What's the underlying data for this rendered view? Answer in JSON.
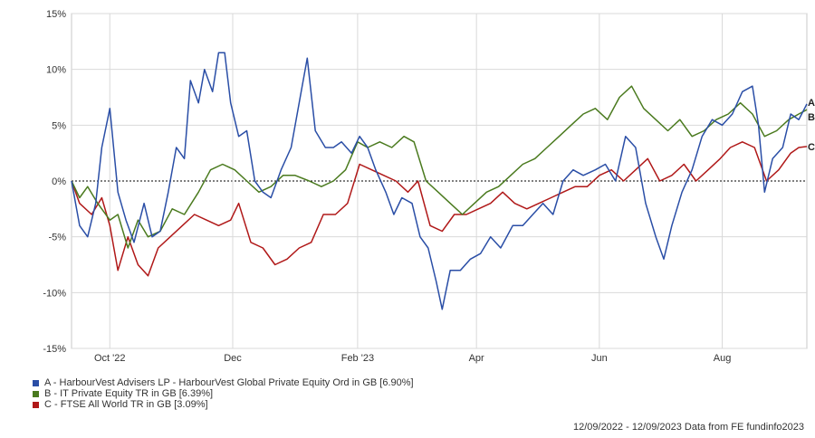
{
  "chart_data": {
    "type": "line",
    "ylim": [
      -15,
      15
    ],
    "yticks": [
      15,
      10,
      5,
      0,
      -5,
      -10,
      -15
    ],
    "ytick_labels": [
      "15%",
      "10%",
      "5%",
      "0%",
      "-5%",
      "-10%",
      "-15%"
    ],
    "xlim": [
      "2022-09-12",
      "2023-09-12"
    ],
    "xticks": [
      "2022-10-01",
      "2022-12-01",
      "2023-02-01",
      "2023-04-01",
      "2023-06-01",
      "2023-08-01"
    ],
    "xtick_labels": [
      "Oct '22",
      "Dec",
      "Feb '23",
      "Apr",
      "Jun",
      "Aug"
    ],
    "grid": true,
    "zero_line": true,
    "series": [
      {
        "name": "A - HarbourVest Advisers LP - HarbourVest Global Private Equity Ord in GB [6.90%]",
        "end_label": "A",
        "color": "#2a4ea6",
        "points": [
          [
            "2022-09-12",
            0
          ],
          [
            "2022-09-16",
            -4
          ],
          [
            "2022-09-20",
            -5
          ],
          [
            "2022-09-24",
            -2
          ],
          [
            "2022-09-27",
            3
          ],
          [
            "2022-10-01",
            6.5
          ],
          [
            "2022-10-05",
            -1
          ],
          [
            "2022-10-09",
            -3.5
          ],
          [
            "2022-10-13",
            -5.5
          ],
          [
            "2022-10-18",
            -2
          ],
          [
            "2022-10-22",
            -5
          ],
          [
            "2022-10-26",
            -4.5
          ],
          [
            "2022-10-30",
            -1
          ],
          [
            "2022-11-03",
            3
          ],
          [
            "2022-11-07",
            2
          ],
          [
            "2022-11-10",
            9
          ],
          [
            "2022-11-14",
            7
          ],
          [
            "2022-11-17",
            10
          ],
          [
            "2022-11-21",
            8
          ],
          [
            "2022-11-24",
            11.5
          ],
          [
            "2022-11-27",
            11.5
          ],
          [
            "2022-11-30",
            7
          ],
          [
            "2022-12-04",
            4
          ],
          [
            "2022-12-08",
            4.5
          ],
          [
            "2022-12-12",
            0
          ],
          [
            "2022-12-16",
            -1
          ],
          [
            "2022-12-20",
            -1.5
          ],
          [
            "2022-12-25",
            1
          ],
          [
            "2022-12-30",
            3
          ],
          [
            "2023-01-04",
            8
          ],
          [
            "2023-01-07",
            11
          ],
          [
            "2023-01-11",
            4.5
          ],
          [
            "2023-01-16",
            3
          ],
          [
            "2023-01-20",
            3
          ],
          [
            "2023-01-24",
            3.5
          ],
          [
            "2023-01-29",
            2.5
          ],
          [
            "2023-02-02",
            4
          ],
          [
            "2023-02-06",
            3
          ],
          [
            "2023-02-10",
            1
          ],
          [
            "2023-02-15",
            -1
          ],
          [
            "2023-02-19",
            -3
          ],
          [
            "2023-02-23",
            -1.5
          ],
          [
            "2023-02-28",
            -2
          ],
          [
            "2023-03-04",
            -5
          ],
          [
            "2023-03-08",
            -6
          ],
          [
            "2023-03-12",
            -9
          ],
          [
            "2023-03-15",
            -11.5
          ],
          [
            "2023-03-19",
            -8
          ],
          [
            "2023-03-24",
            -8
          ],
          [
            "2023-03-29",
            -7
          ],
          [
            "2023-04-03",
            -6.5
          ],
          [
            "2023-04-08",
            -5
          ],
          [
            "2023-04-13",
            -6
          ],
          [
            "2023-04-19",
            -4
          ],
          [
            "2023-04-24",
            -4
          ],
          [
            "2023-04-29",
            -3
          ],
          [
            "2023-05-04",
            -2
          ],
          [
            "2023-05-09",
            -3
          ],
          [
            "2023-05-14",
            0
          ],
          [
            "2023-05-19",
            1
          ],
          [
            "2023-05-24",
            0.5
          ],
          [
            "2023-05-30",
            1
          ],
          [
            "2023-06-04",
            1.5
          ],
          [
            "2023-06-09",
            0
          ],
          [
            "2023-06-14",
            4
          ],
          [
            "2023-06-19",
            3
          ],
          [
            "2023-06-24",
            -2
          ],
          [
            "2023-06-29",
            -5
          ],
          [
            "2023-07-03",
            -7
          ],
          [
            "2023-07-07",
            -4
          ],
          [
            "2023-07-12",
            -1
          ],
          [
            "2023-07-17",
            1
          ],
          [
            "2023-07-22",
            4
          ],
          [
            "2023-07-27",
            5.5
          ],
          [
            "2023-08-01",
            5
          ],
          [
            "2023-08-06",
            6
          ],
          [
            "2023-08-11",
            8
          ],
          [
            "2023-08-16",
            8.5
          ],
          [
            "2023-08-19",
            5
          ],
          [
            "2023-08-22",
            -1
          ],
          [
            "2023-08-26",
            2
          ],
          [
            "2023-08-31",
            3
          ],
          [
            "2023-09-04",
            6
          ],
          [
            "2023-09-08",
            5.5
          ],
          [
            "2023-09-12",
            6.9
          ]
        ]
      },
      {
        "name": "B - IT Private Equity TR in GB [6.39%]",
        "end_label": "B",
        "color": "#4a7a1e",
        "points": [
          [
            "2022-09-12",
            0
          ],
          [
            "2022-09-16",
            -1.5
          ],
          [
            "2022-09-20",
            -0.5
          ],
          [
            "2022-09-25",
            -2
          ],
          [
            "2022-10-01",
            -3.5
          ],
          [
            "2022-10-05",
            -3
          ],
          [
            "2022-10-10",
            -6
          ],
          [
            "2022-10-15",
            -3.5
          ],
          [
            "2022-10-20",
            -5
          ],
          [
            "2022-10-26",
            -4.5
          ],
          [
            "2022-11-01",
            -2.5
          ],
          [
            "2022-11-07",
            -3
          ],
          [
            "2022-11-14",
            -1
          ],
          [
            "2022-11-20",
            1
          ],
          [
            "2022-11-26",
            1.5
          ],
          [
            "2022-12-02",
            1
          ],
          [
            "2022-12-08",
            0
          ],
          [
            "2022-12-14",
            -1
          ],
          [
            "2022-12-20",
            -0.5
          ],
          [
            "2022-12-26",
            0.5
          ],
          [
            "2023-01-01",
            0.5
          ],
          [
            "2023-01-08",
            0
          ],
          [
            "2023-01-14",
            -0.5
          ],
          [
            "2023-01-20",
            0
          ],
          [
            "2023-01-26",
            1
          ],
          [
            "2023-02-01",
            3.5
          ],
          [
            "2023-02-06",
            3
          ],
          [
            "2023-02-12",
            3.5
          ],
          [
            "2023-02-18",
            3
          ],
          [
            "2023-02-24",
            4
          ],
          [
            "2023-03-01",
            3.5
          ],
          [
            "2023-03-07",
            0
          ],
          [
            "2023-03-13",
            -1
          ],
          [
            "2023-03-19",
            -2
          ],
          [
            "2023-03-25",
            -3
          ],
          [
            "2023-03-31",
            -2
          ],
          [
            "2023-04-06",
            -1
          ],
          [
            "2023-04-12",
            -0.5
          ],
          [
            "2023-04-18",
            0.5
          ],
          [
            "2023-04-24",
            1.5
          ],
          [
            "2023-04-30",
            2
          ],
          [
            "2023-05-06",
            3
          ],
          [
            "2023-05-12",
            4
          ],
          [
            "2023-05-18",
            5
          ],
          [
            "2023-05-24",
            6
          ],
          [
            "2023-05-30",
            6.5
          ],
          [
            "2023-06-05",
            5.5
          ],
          [
            "2023-06-11",
            7.5
          ],
          [
            "2023-06-17",
            8.5
          ],
          [
            "2023-06-23",
            6.5
          ],
          [
            "2023-06-29",
            5.5
          ],
          [
            "2023-07-05",
            4.5
          ],
          [
            "2023-07-11",
            5.5
          ],
          [
            "2023-07-17",
            4
          ],
          [
            "2023-07-23",
            4.5
          ],
          [
            "2023-07-29",
            5.5
          ],
          [
            "2023-08-04",
            6
          ],
          [
            "2023-08-10",
            7
          ],
          [
            "2023-08-16",
            6
          ],
          [
            "2023-08-22",
            4
          ],
          [
            "2023-08-28",
            4.5
          ],
          [
            "2023-09-03",
            5.5
          ],
          [
            "2023-09-08",
            6
          ],
          [
            "2023-09-12",
            6.39
          ]
        ]
      },
      {
        "name": "C - FTSE All World TR in GB [3.09%]",
        "end_label": "C",
        "color": "#b01818",
        "points": [
          [
            "2022-09-12",
            0
          ],
          [
            "2022-09-16",
            -2
          ],
          [
            "2022-09-22",
            -3
          ],
          [
            "2022-09-27",
            -1.5
          ],
          [
            "2022-10-01",
            -4
          ],
          [
            "2022-10-05",
            -8
          ],
          [
            "2022-10-10",
            -5
          ],
          [
            "2022-10-15",
            -7.5
          ],
          [
            "2022-10-20",
            -8.5
          ],
          [
            "2022-10-25",
            -6
          ],
          [
            "2022-10-31",
            -5
          ],
          [
            "2022-11-06",
            -4
          ],
          [
            "2022-11-12",
            -3
          ],
          [
            "2022-11-18",
            -3.5
          ],
          [
            "2022-11-24",
            -4
          ],
          [
            "2022-11-30",
            -3.5
          ],
          [
            "2022-12-04",
            -2
          ],
          [
            "2022-12-10",
            -5.5
          ],
          [
            "2022-12-16",
            -6
          ],
          [
            "2022-12-22",
            -7.5
          ],
          [
            "2022-12-28",
            -7
          ],
          [
            "2023-01-03",
            -6
          ],
          [
            "2023-01-09",
            -5.5
          ],
          [
            "2023-01-15",
            -3
          ],
          [
            "2023-01-21",
            -3
          ],
          [
            "2023-01-27",
            -2
          ],
          [
            "2023-02-02",
            1.5
          ],
          [
            "2023-02-08",
            1
          ],
          [
            "2023-02-14",
            0.5
          ],
          [
            "2023-02-20",
            0
          ],
          [
            "2023-02-26",
            -1
          ],
          [
            "2023-03-03",
            0
          ],
          [
            "2023-03-09",
            -4
          ],
          [
            "2023-03-15",
            -4.5
          ],
          [
            "2023-03-21",
            -3
          ],
          [
            "2023-03-27",
            -3
          ],
          [
            "2023-04-02",
            -2.5
          ],
          [
            "2023-04-08",
            -2
          ],
          [
            "2023-04-14",
            -1
          ],
          [
            "2023-04-20",
            -2
          ],
          [
            "2023-04-26",
            -2.5
          ],
          [
            "2023-05-02",
            -2
          ],
          [
            "2023-05-08",
            -1.5
          ],
          [
            "2023-05-14",
            -1
          ],
          [
            "2023-05-20",
            -0.5
          ],
          [
            "2023-05-26",
            -0.5
          ],
          [
            "2023-06-01",
            0.5
          ],
          [
            "2023-06-07",
            1
          ],
          [
            "2023-06-13",
            0
          ],
          [
            "2023-06-19",
            1
          ],
          [
            "2023-06-25",
            2
          ],
          [
            "2023-07-01",
            0
          ],
          [
            "2023-07-07",
            0.5
          ],
          [
            "2023-07-13",
            1.5
          ],
          [
            "2023-07-19",
            0
          ],
          [
            "2023-07-25",
            1
          ],
          [
            "2023-07-31",
            2
          ],
          [
            "2023-08-05",
            3
          ],
          [
            "2023-08-11",
            3.5
          ],
          [
            "2023-08-17",
            3
          ],
          [
            "2023-08-23",
            0
          ],
          [
            "2023-08-29",
            1
          ],
          [
            "2023-09-04",
            2.5
          ],
          [
            "2023-09-08",
            3
          ],
          [
            "2023-09-12",
            3.09
          ]
        ]
      }
    ]
  },
  "legend": [
    {
      "text": "A - HarbourVest Advisers LP - HarbourVest Global Private Equity Ord in GB [6.90%]",
      "color": "#2a4ea6"
    },
    {
      "text": "B - IT Private Equity TR in GB [6.39%]",
      "color": "#4a7a1e"
    },
    {
      "text": "C - FTSE All World TR in GB [3.09%]",
      "color": "#b01818"
    }
  ],
  "footer": {
    "text": "12/09/2022 - 12/09/2023 Data from FE fundinfo2023"
  }
}
